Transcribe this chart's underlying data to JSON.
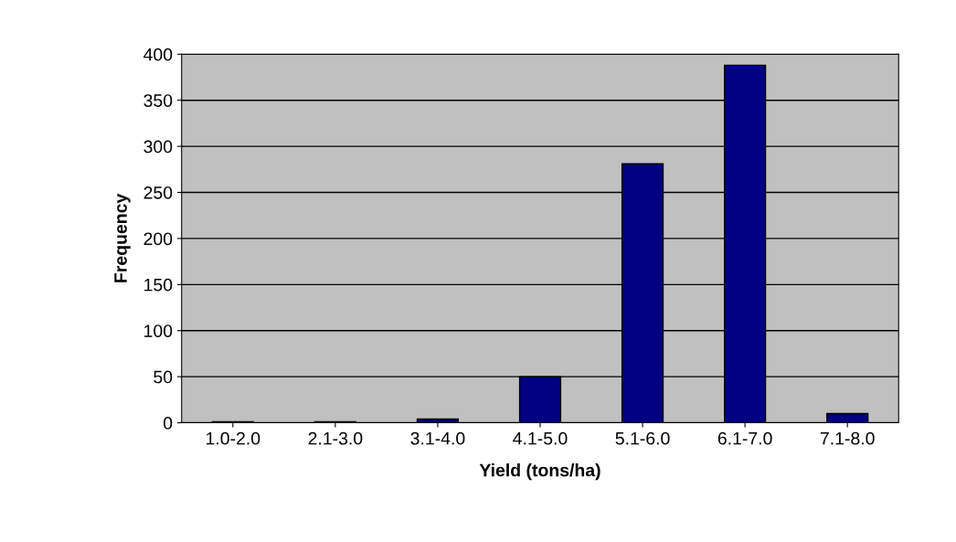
{
  "chart_data": {
    "type": "bar",
    "xlabel": "Yield (tons/ha)",
    "ylabel": "Frequency",
    "categories": [
      "1.0-2.0",
      "2.1-3.0",
      "3.1-4.0",
      "4.1-5.0",
      "5.1-6.0",
      "6.1-7.0",
      "7.1-8.0"
    ],
    "values": [
      1,
      1,
      4,
      50,
      281,
      388,
      10
    ],
    "color": "#000080",
    "ylim": [
      0,
      400
    ],
    "yticks": [
      0,
      50,
      100,
      150,
      200,
      250,
      300,
      350,
      400
    ],
    "grid": "y"
  }
}
